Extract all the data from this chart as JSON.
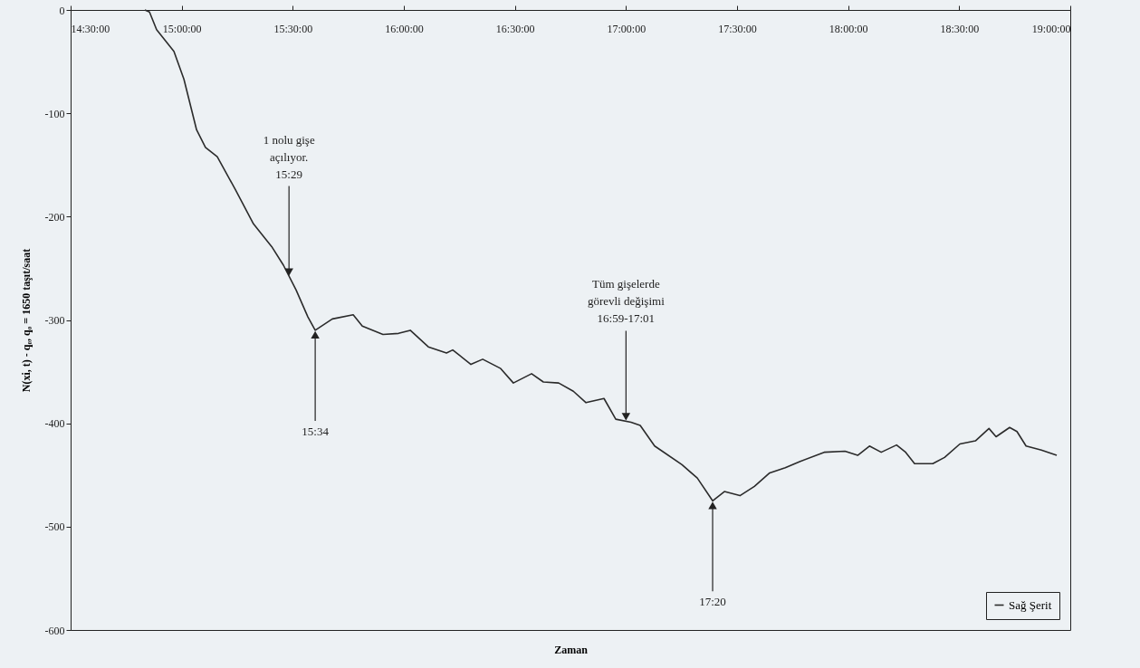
{
  "chart_data": {
    "type": "line",
    "xlabel": "Zaman",
    "ylabel": "N(xi, t) - q₀, q₀ = 1650 taşıt/saat",
    "xlim": [
      14.5,
      19
    ],
    "xticks": [
      {
        "value": 14.5,
        "label": "14:30:00"
      },
      {
        "value": 15,
        "label": "15:00:00"
      },
      {
        "value": 15.5,
        "label": "15:30:00"
      },
      {
        "value": 16,
        "label": "16:00:00"
      },
      {
        "value": 16.5,
        "label": "16:30:00"
      },
      {
        "value": 17,
        "label": "17:00:00"
      },
      {
        "value": 17.5,
        "label": "17:30:00"
      },
      {
        "value": 18,
        "label": "18:00:00"
      },
      {
        "value": 18.5,
        "label": "18:30:00"
      },
      {
        "value": 19,
        "label": "19:00:00"
      }
    ],
    "ylim": [
      -600,
      0
    ],
    "yticks": [
      -600,
      -500,
      -400,
      -300,
      -200,
      -100,
      0
    ],
    "legend": "bottom right",
    "grid": false,
    "marker": "none",
    "line_style": "solid",
    "series": [
      {
        "name": "Sağ Şerit",
        "color": "#2b2b2b",
        "x": [
          14.834,
          14.855,
          14.887,
          14.965,
          15.01,
          15.067,
          15.107,
          15.16,
          15.242,
          15.323,
          15.405,
          15.458,
          15.515,
          15.568,
          15.601,
          15.678,
          15.772,
          15.813,
          15.906,
          15.976,
          16.029,
          16.11,
          16.192,
          16.22,
          16.302,
          16.355,
          16.436,
          16.493,
          16.575,
          16.628,
          16.697,
          16.763,
          16.82,
          16.901,
          16.954,
          17.023,
          17.064,
          17.129,
          17.252,
          17.321,
          17.39,
          17.443,
          17.513,
          17.578,
          17.647,
          17.717,
          17.782,
          17.892,
          17.986,
          18.043,
          18.096,
          18.149,
          18.218,
          18.259,
          18.299,
          18.381,
          18.434,
          18.503,
          18.573,
          18.634,
          18.666,
          18.727,
          18.76,
          18.801,
          18.87,
          18.939
        ],
        "values": [
          0,
          -2,
          -19,
          -40,
          -67,
          -116,
          -133,
          -142,
          -174,
          -207,
          -229,
          -247,
          -271,
          -297,
          -310,
          -299,
          -295,
          -306,
          -314,
          -313,
          -310,
          -326,
          -332,
          -329,
          -343,
          -338,
          -347,
          -361,
          -352,
          -360,
          -361,
          -369,
          -380,
          -376,
          -396,
          -399,
          -402,
          -422,
          -440,
          -453,
          -475,
          -466,
          -470,
          -461,
          -448,
          -443,
          -437,
          -428,
          -427,
          -431,
          -422,
          -428,
          -421,
          -428,
          -439,
          -439,
          -433,
          -420,
          -417,
          -405,
          -413,
          -404,
          -408,
          -422,
          -426,
          -431
        ]
      }
    ],
    "annotations": [
      {
        "text": "1 nolu gişe\naçılıyor.\n15:29",
        "x": 15.483,
        "y": -258
      },
      {
        "text": "15:34",
        "x": 15.601,
        "y": -310
      },
      {
        "text": "Tüm gişelerde\ngörevli değişimi\n16:59-17:01",
        "x": 17.0,
        "y": -398
      },
      {
        "text": "17:20",
        "x": 17.39,
        "y": -475
      }
    ]
  }
}
